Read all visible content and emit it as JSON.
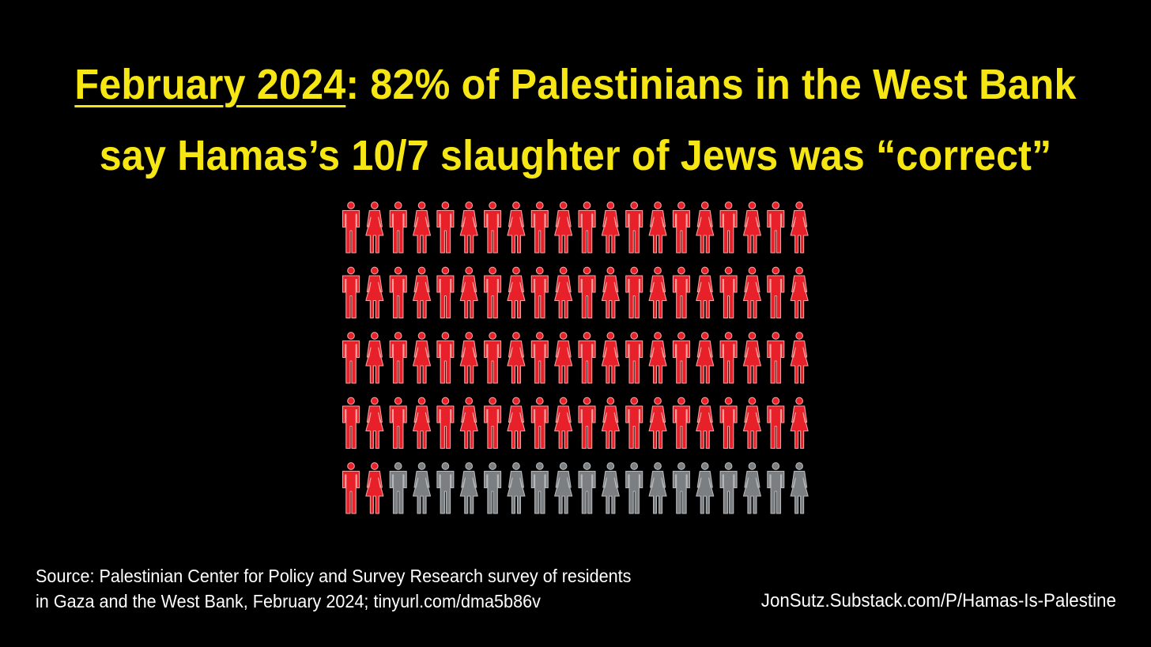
{
  "title": {
    "date": "February 2024",
    "line1_rest": ": 82% of Palestinians in the West Bank",
    "line2": "say Hamas’s 10/7 slaughter of Jews was “correct”"
  },
  "source": {
    "line1": "Source: Palestinian Center for Policy and Survey Research survey of residents",
    "line2": "in Gaza and the West Bank, February 2024; tinyurl.com/dma5b86v"
  },
  "credit": "JonSutz.Substack.com/P/Hamas-Is-Palestine",
  "colors": {
    "title": "#f5e614",
    "highlight": "#e8202a",
    "highlight_outline": "#f4a09c",
    "rest": "#7c7f82",
    "rest_outline": "#b5b8ba",
    "background": "#000000"
  },
  "chart_data": {
    "type": "pictogram",
    "total": 100,
    "highlighted": 82,
    "rows": 5,
    "columns": 20,
    "icons": [
      "man-icon",
      "woman-icon"
    ],
    "icon_pattern": "alternating"
  }
}
